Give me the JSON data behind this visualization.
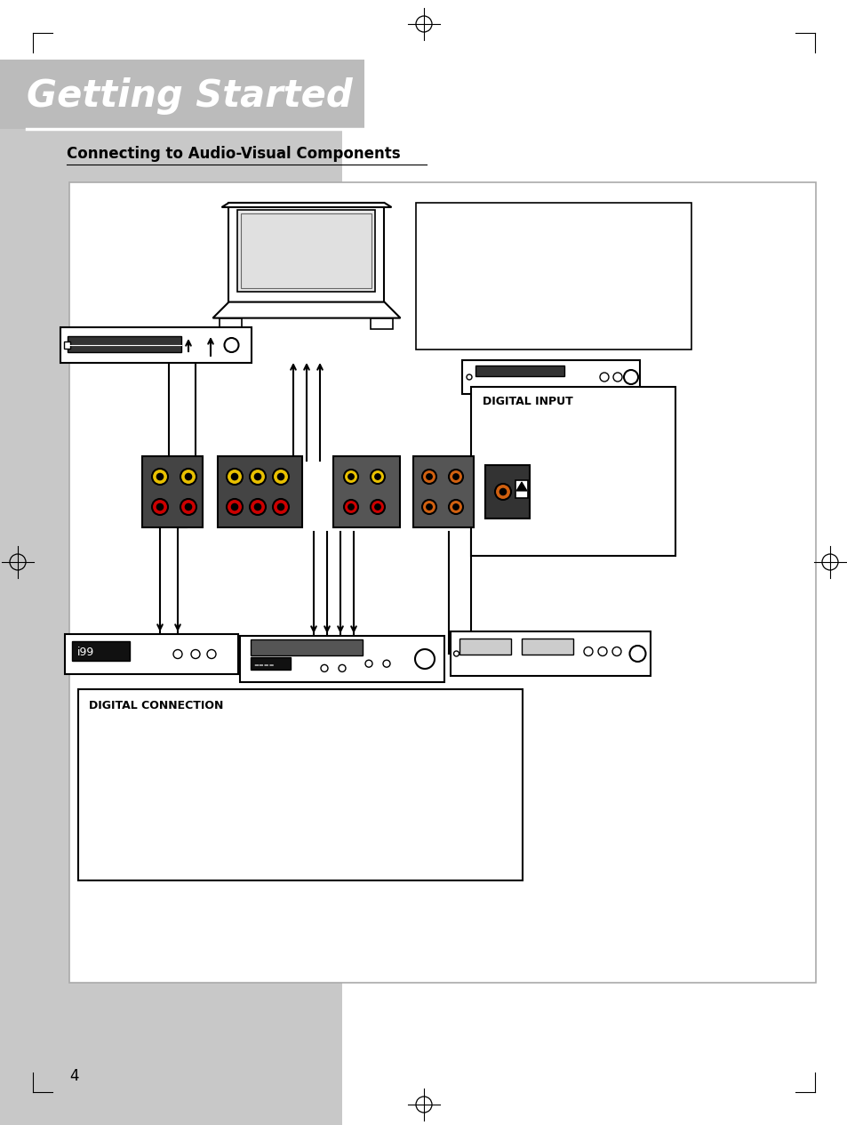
{
  "bg_color": "#ffffff",
  "sidebar_color": "#c8c8c8",
  "title_bg_color": "#c8c8c8",
  "title_text": "Getting Started",
  "title_text_color": "#ffffff",
  "subtitle_text": "Connecting to Audio-Visual Components",
  "subtitle_color": "#000000",
  "page_number": "4",
  "diagram_line_color": "#000000",
  "connector_yellow": "#e8c000",
  "connector_red": "#cc0000",
  "connector_white": "#ffffff",
  "connector_black": "#000000",
  "connector_orange": "#d06010",
  "panel_bg": "#e0e0e0"
}
